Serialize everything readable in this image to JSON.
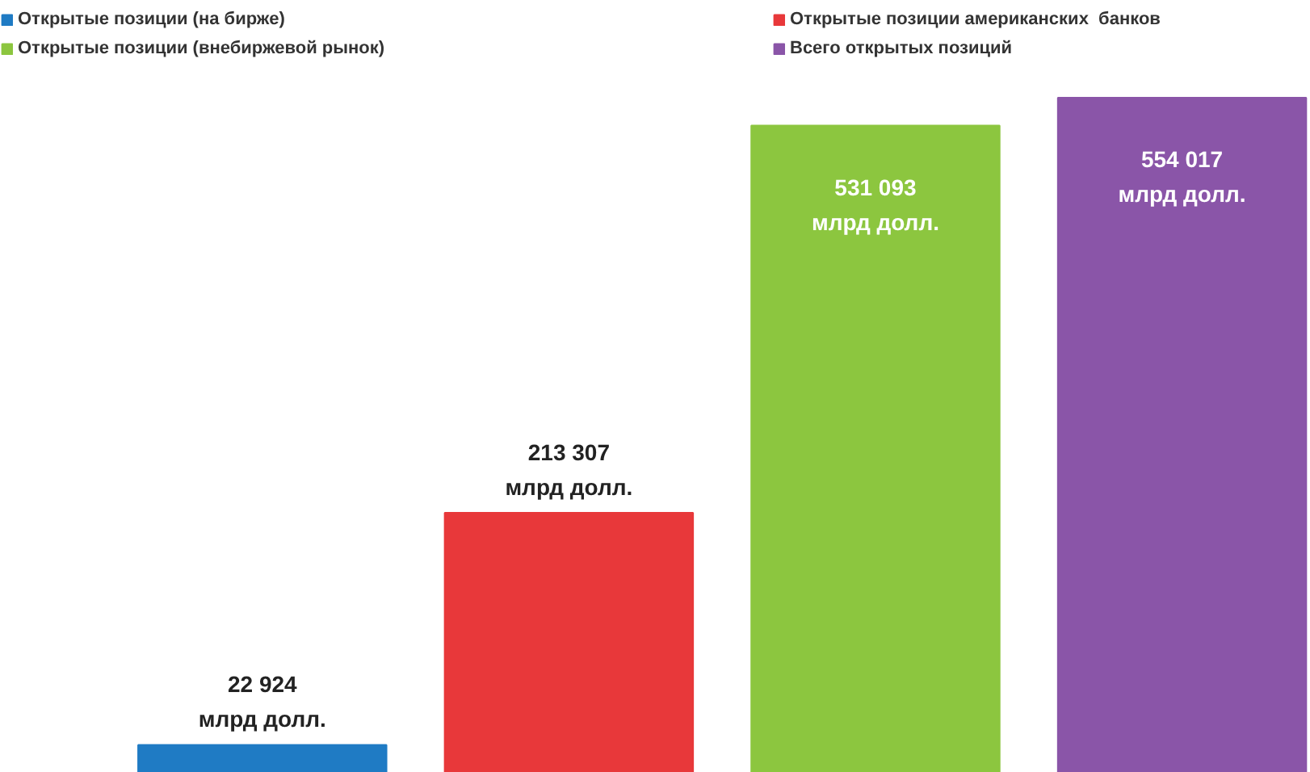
{
  "chart_data": {
    "type": "bar",
    "categories": [
      null
    ],
    "series": [
      {
        "name": "Открытые позиции (на бирже)",
        "color": "#1f7bc4",
        "values": [
          22924
        ],
        "value_labels": [
          "22 924\nмлрд долл."
        ]
      },
      {
        "name": "Открытые позиции американских  банков",
        "color": "#e8383a",
        "values": [
          213307
        ],
        "value_labels": [
          "213 307\nмлрд долл."
        ]
      },
      {
        "name": "Открытые позиции (внебиржевой рынок)",
        "color": "#8cc63f",
        "values": [
          531093
        ],
        "value_labels": [
          "531 093\nмлрд долл."
        ]
      },
      {
        "name": "Всего открытых позиций",
        "color": "#8a55a8",
        "values": [
          554017
        ],
        "value_labels": [
          "554 017\nмлрд долл."
        ]
      }
    ],
    "legend": "top"
  }
}
